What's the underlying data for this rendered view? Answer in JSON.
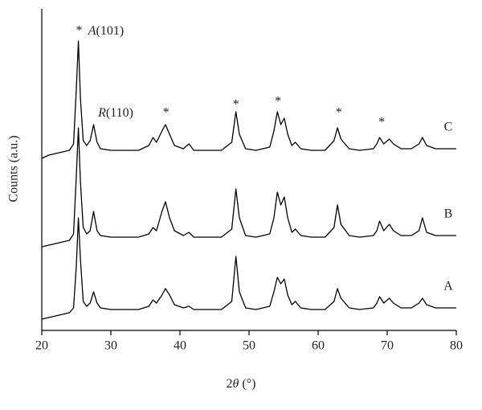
{
  "chart_data": {
    "type": "line",
    "xlabel": "2θ (°)",
    "ylabel": "Counts (a.u.)",
    "xlim": [
      20,
      80
    ],
    "ylim": [
      0,
      100
    ],
    "xticks": [
      20,
      30,
      40,
      50,
      60,
      70,
      80
    ],
    "x": [
      20,
      21,
      22,
      23,
      24,
      24.6,
      25.0,
      25.3,
      25.6,
      26.0,
      26.5,
      27.0,
      27.5,
      28.0,
      28.5,
      30,
      32,
      34,
      35.5,
      36.1,
      36.6,
      37.4,
      37.9,
      38.5,
      39.2,
      40.5,
      41.3,
      42,
      44,
      46,
      47.5,
      48.1,
      48.6,
      49.5,
      51,
      53,
      53.6,
      54.1,
      54.6,
      55.1,
      55.6,
      56.2,
      56.7,
      57.5,
      59,
      61,
      62.3,
      62.8,
      63.3,
      64.5,
      66,
      68,
      68.5,
      68.9,
      69.5,
      70.3,
      70.9,
      72,
      73.5,
      74.6,
      75.1,
      75.7,
      77,
      78.5,
      80
    ],
    "series": [
      {
        "name": "A",
        "color": "#000000",
        "values": [
          3.5,
          4,
          4.5,
          5,
          5.5,
          7,
          20,
          35,
          22,
          9,
          7.5,
          8.5,
          12,
          8.5,
          7,
          6.5,
          6.5,
          6.5,
          7.5,
          9.5,
          8.5,
          11,
          13,
          11,
          8,
          7,
          7.5,
          6.5,
          6.5,
          6.5,
          9,
          23,
          12,
          7,
          6.5,
          7.5,
          12,
          16.5,
          14.5,
          16,
          11,
          8,
          9,
          7,
          6.5,
          6.5,
          9,
          13,
          10,
          7,
          6.5,
          7,
          8.5,
          10.5,
          8.5,
          10,
          8.5,
          7,
          7,
          8.5,
          10,
          8,
          7,
          7,
          7
        ]
      },
      {
        "name": "B",
        "color": "#000000",
        "values": [
          26,
          26.5,
          27,
          27.5,
          28,
          30,
          48,
          63,
          46,
          32,
          30,
          31,
          37,
          31,
          29.5,
          29,
          29,
          29,
          30,
          32,
          31,
          37,
          40,
          35,
          31,
          29.5,
          30.5,
          29,
          29,
          29,
          31.5,
          44,
          35,
          29.5,
          29,
          30,
          35,
          43,
          39,
          41.5,
          35,
          30.5,
          31.5,
          29.5,
          29,
          29,
          32,
          39,
          33,
          29.5,
          29,
          29.5,
          31,
          34,
          31,
          33,
          31,
          29.5,
          29.5,
          31,
          35,
          30.5,
          29.5,
          29.5,
          29.5
        ]
      },
      {
        "name": "C",
        "color": "#000000",
        "values": [
          53.5,
          54.5,
          55,
          55.5,
          56,
          58,
          75,
          90,
          72,
          59,
          57.5,
          59,
          64,
          58.5,
          56.5,
          56,
          56,
          56,
          57.5,
          60,
          58.5,
          62,
          64,
          61,
          57.5,
          56.5,
          58,
          56,
          56,
          56,
          58.5,
          68,
          61,
          56.5,
          56,
          57,
          62,
          68,
          64,
          66,
          61,
          57.5,
          58.5,
          56.5,
          56,
          56,
          59,
          63,
          59.5,
          56.5,
          56,
          56.5,
          58,
          60,
          58,
          59.5,
          58,
          56.5,
          56.5,
          58,
          60,
          57.5,
          56.5,
          56.5,
          56.5
        ]
      }
    ],
    "annotations": [
      {
        "text": "*",
        "x": 25.4,
        "y": 93
      },
      {
        "text": "A(101)",
        "x": 29.3,
        "y": 93
      },
      {
        "text": "R(110)",
        "x": 30.7,
        "y": 67.5
      },
      {
        "text": "*",
        "x": 38.0,
        "y": 67.5
      },
      {
        "text": "*",
        "x": 48.1,
        "y": 70
      },
      {
        "text": "*",
        "x": 54.2,
        "y": 71
      },
      {
        "text": "*",
        "x": 63.0,
        "y": 67.5
      },
      {
        "text": "*",
        "x": 69.2,
        "y": 64.5
      }
    ]
  }
}
